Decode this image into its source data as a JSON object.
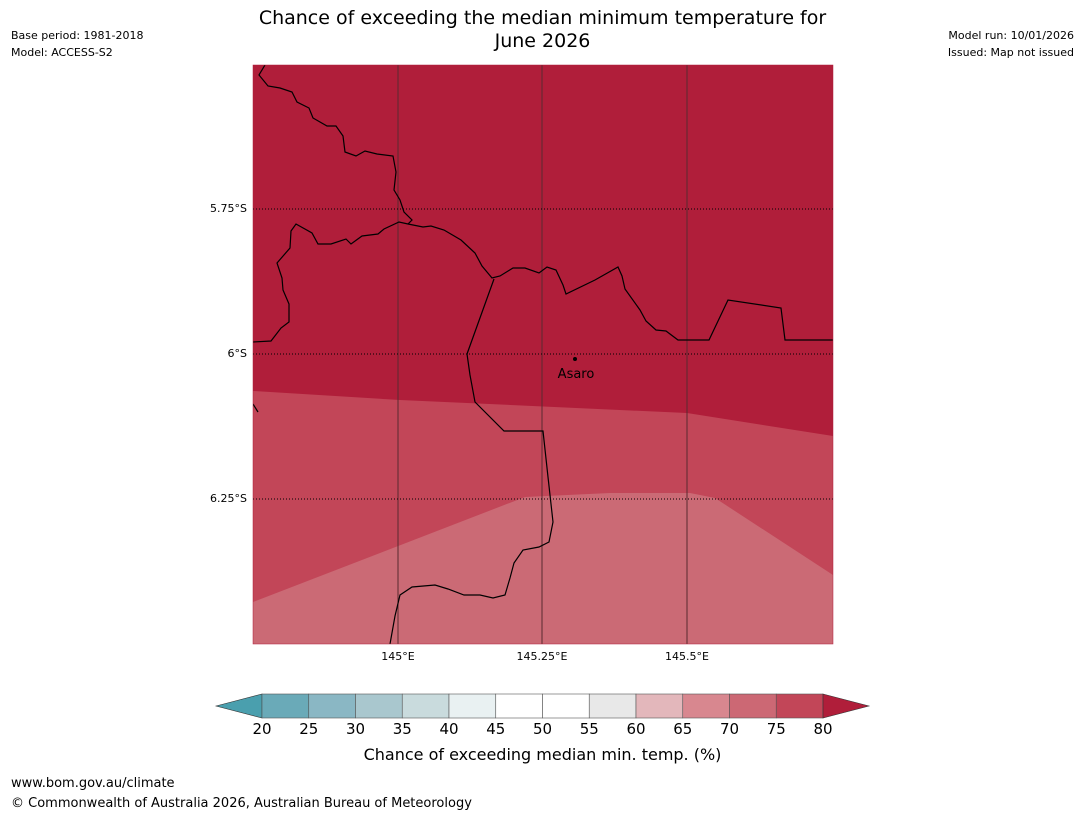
{
  "header": {
    "title_line1": "Chance of exceeding the median minimum temperature for",
    "title_line2": "June 2026",
    "base_period": "Base period: 1981-2018",
    "model": "Model: ACCESS-S2",
    "model_run": "Model run: 10/01/2026",
    "issued": "Issued: Map not issued"
  },
  "map": {
    "latitude_labels": [
      "5.75°S",
      "6°S",
      "6.25°S"
    ],
    "longitude_labels": [
      "145°E",
      "145.25°E",
      "145.5°E"
    ],
    "place": "Asaro",
    "zone_colors": {
      "above_80": "#b01e3a",
      "75_80": "#c24658",
      "70_75": "#cb6a75"
    }
  },
  "colorbar": {
    "title": "Chance of exceeding median min. temp. (%)",
    "ticks": [
      "20",
      "25",
      "30",
      "35",
      "40",
      "45",
      "50",
      "55",
      "60",
      "65",
      "70",
      "75",
      "80"
    ],
    "low_color": "#4a9fae",
    "high_color": "#b01e3a",
    "colors": [
      "#6aaab8",
      "#8ab7c4",
      "#a9c7ce",
      "#c9dbdd",
      "#e9f1f2",
      "#ffffff",
      "#ffffff",
      "#e8e8e8",
      "#e3b7bb",
      "#d8878f",
      "#cc6874",
      "#c24658"
    ]
  },
  "footer": {
    "url": "www.bom.gov.au/climate",
    "copyright": "© Commonwealth of Australia 2026, Australian Bureau of Meteorology"
  }
}
